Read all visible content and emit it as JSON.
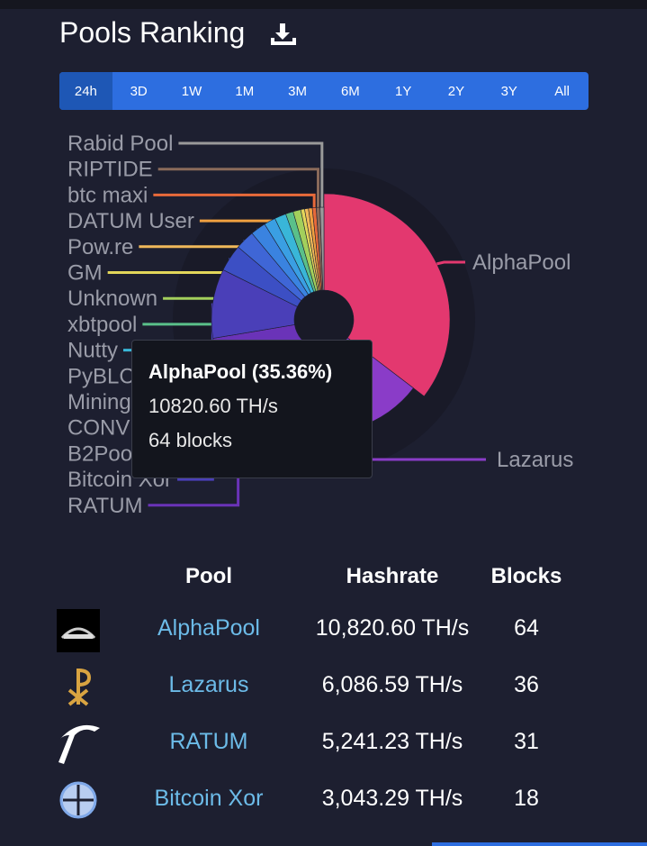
{
  "header": {
    "title": "Pools Ranking"
  },
  "periods": [
    "24h",
    "3D",
    "1W",
    "1M",
    "3M",
    "6M",
    "1Y",
    "2Y",
    "3Y",
    "All"
  ],
  "chart_data": {
    "type": "pie",
    "categories": [
      "AlphaPool",
      "Lazarus",
      "RATUM",
      "Bitcoin Xor",
      "B2Poo",
      "CONV",
      "Mining",
      "PyBLC",
      "Nutty",
      "xbtpool",
      "Unknown",
      "GM",
      "Pow.re",
      "DATUM User",
      "btc maxi",
      "RIPTIDE",
      "Rabid Pool"
    ],
    "values": [
      64,
      36,
      31,
      18,
      7,
      5,
      4,
      3,
      3,
      2,
      2,
      1,
      1,
      1,
      1,
      1,
      1
    ],
    "colors": [
      "#e3386f",
      "#8a3cc8",
      "#6a33b8",
      "#4a3fb8",
      "#3c4fc4",
      "#3f66d6",
      "#3a83e0",
      "#3a9fe3",
      "#39b6d8",
      "#5ac08a",
      "#a3cf5c",
      "#e2d65a",
      "#f0b85a",
      "#f0a040",
      "#e86a3a",
      "#8a6a5a",
      "#9a9a9a"
    ]
  },
  "tooltip": {
    "title": "AlphaPool (35.36%)",
    "hashrate": "10820.60 TH/s",
    "blocks": "64 blocks"
  },
  "table": {
    "headers": [
      "Pool",
      "Hashrate",
      "Blocks"
    ],
    "rows": [
      [
        "AlphaPool",
        "10,820.60 TH/s",
        "64"
      ],
      [
        "Lazarus",
        "6,086.59 TH/s",
        "36"
      ],
      [
        "RATUM",
        "5,241.23 TH/s",
        "31"
      ],
      [
        "Bitcoin Xor",
        "3,043.29 TH/s",
        "18"
      ]
    ]
  }
}
